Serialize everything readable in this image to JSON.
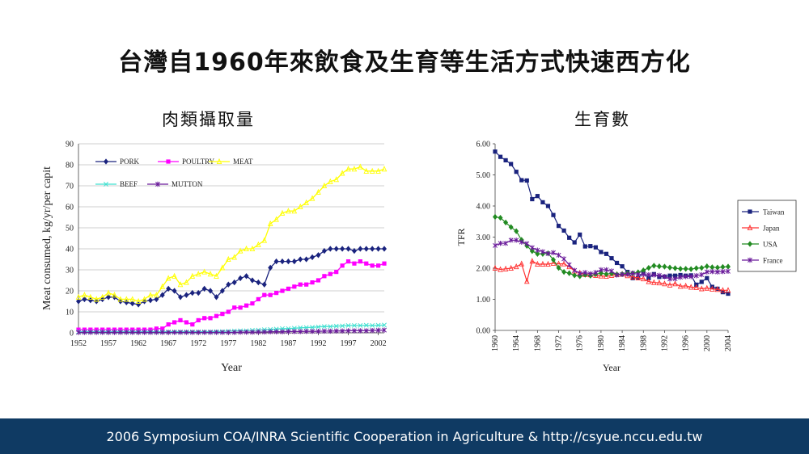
{
  "slide": {
    "title": "台灣自1960年來飲食及生育等生活方式快速西方化",
    "footer": "2006 Symposium COA/INRA Scientific Cooperation in Agriculture & http://csyue.nccu.edu.tw"
  },
  "chart_data": [
    {
      "type": "line",
      "title": "肉類攝取量",
      "xlabel": "Year",
      "ylabel": "Meat consumed, kg/yr/per capit",
      "ylim": [
        0,
        90
      ],
      "yticks": [
        "0",
        "10",
        "20",
        "30",
        "40",
        "50",
        "60",
        "70",
        "80",
        "90"
      ],
      "xticks": [
        "1952",
        "1957",
        "1962",
        "1967",
        "1972",
        "1977",
        "1982",
        "1987",
        "1992",
        "1997",
        "2002"
      ],
      "grid": "horizontal",
      "legend_placement": "top-left",
      "x": [
        1952,
        1953,
        1954,
        1955,
        1956,
        1957,
        1958,
        1959,
        1960,
        1961,
        1962,
        1963,
        1964,
        1965,
        1966,
        1967,
        1968,
        1969,
        1970,
        1971,
        1972,
        1973,
        1974,
        1975,
        1976,
        1977,
        1978,
        1979,
        1980,
        1981,
        1982,
        1983,
        1984,
        1985,
        1986,
        1987,
        1988,
        1989,
        1990,
        1991,
        1992,
        1993,
        1994,
        1995,
        1996,
        1997,
        1998,
        1999,
        2000,
        2001,
        2002,
        2003
      ],
      "series": [
        {
          "name": "PORK",
          "color": "#1a237e",
          "marker": "diamond",
          "values": [
            15,
            16,
            15.5,
            15,
            16,
            17,
            17,
            15,
            14.5,
            14,
            13.5,
            15,
            15.5,
            16,
            18,
            21,
            20,
            17,
            18,
            19,
            19,
            21,
            20,
            17,
            20,
            23,
            24,
            26,
            27,
            25,
            24,
            23,
            31,
            34,
            34,
            34,
            34,
            35,
            35,
            36,
            37,
            39,
            40,
            40,
            40,
            40,
            39,
            40,
            40,
            40,
            40,
            40
          ]
        },
        {
          "name": "POULTRY",
          "color": "#ff00ff",
          "marker": "square",
          "values": [
            1.5,
            1.5,
            1.5,
            1.5,
            1.5,
            1.5,
            1.5,
            1.5,
            1.5,
            1.5,
            1.5,
            1.5,
            1.5,
            2,
            2,
            4,
            5,
            6,
            5,
            4,
            6,
            7,
            7,
            8,
            9,
            10,
            12,
            12,
            13,
            14,
            16,
            18,
            18,
            19,
            20,
            21,
            22,
            23,
            23,
            24,
            25,
            27,
            28,
            29,
            32,
            34,
            33,
            34,
            33,
            32,
            32,
            33
          ]
        },
        {
          "name": "MEAT",
          "color": "#ffff00",
          "marker": "triangle",
          "values": [
            17,
            18,
            17,
            16,
            17,
            19,
            18,
            16,
            16,
            16,
            15,
            16,
            18,
            18,
            22,
            26,
            27,
            23,
            24,
            27,
            28,
            29,
            28,
            27,
            31,
            35,
            36,
            39,
            40,
            40,
            42,
            44,
            52,
            54,
            57,
            58,
            58,
            60,
            62,
            64,
            67,
            70,
            72,
            73,
            76,
            78,
            78,
            79,
            77,
            77,
            77,
            78
          ]
        },
        {
          "name": "BEEF",
          "color": "#40e0d0",
          "marker": "x",
          "values": [
            0.5,
            0.5,
            0.5,
            0.5,
            0.5,
            0.5,
            0.5,
            0.5,
            0.5,
            0.5,
            0.5,
            0.5,
            0.5,
            0.5,
            0.5,
            0.5,
            0.5,
            0.5,
            0.5,
            0.5,
            0.5,
            0.5,
            0.5,
            0.6,
            0.6,
            0.8,
            0.9,
            1,
            1,
            1.2,
            1.3,
            1.5,
            1.6,
            1.8,
            2,
            2,
            2.2,
            2.4,
            2.5,
            2.6,
            2.8,
            3,
            3,
            3.2,
            3.3,
            3.5,
            3.5,
            3.5,
            3.6,
            3.5,
            3.6,
            3.7
          ]
        },
        {
          "name": "MUTTON",
          "color": "#6a1b9a",
          "marker": "star",
          "values": [
            0.2,
            0.2,
            0.2,
            0.2,
            0.2,
            0.2,
            0.2,
            0.2,
            0.2,
            0.2,
            0.2,
            0.2,
            0.2,
            0.2,
            0.2,
            0.2,
            0.2,
            0.2,
            0.2,
            0.2,
            0.2,
            0.2,
            0.2,
            0.2,
            0.2,
            0.2,
            0.2,
            0.3,
            0.3,
            0.3,
            0.4,
            0.4,
            0.5,
            0.5,
            0.5,
            0.6,
            0.6,
            0.6,
            0.7,
            0.7,
            0.7,
            0.8,
            0.8,
            0.9,
            0.9,
            1,
            1,
            1,
            1,
            1.1,
            1.2,
            1.3
          ]
        }
      ]
    },
    {
      "type": "line",
      "title": "生育數",
      "xlabel": "Year",
      "ylabel": "TFR",
      "ylim": [
        0,
        6
      ],
      "yticks": [
        "0.00",
        "1.00",
        "2.00",
        "3.00",
        "4.00",
        "5.00",
        "6.00"
      ],
      "xticks": [
        "1960",
        "1964",
        "1968",
        "1972",
        "1976",
        "1980",
        "1984",
        "1988",
        "1992",
        "1996",
        "2000",
        "2004"
      ],
      "grid": "none",
      "legend_placement": "right",
      "x": [
        1960,
        1961,
        1962,
        1963,
        1964,
        1965,
        1966,
        1967,
        1968,
        1969,
        1970,
        1971,
        1972,
        1973,
        1974,
        1975,
        1976,
        1977,
        1978,
        1979,
        1980,
        1981,
        1982,
        1983,
        1984,
        1985,
        1986,
        1987,
        1988,
        1989,
        1990,
        1991,
        1992,
        1993,
        1994,
        1995,
        1996,
        1997,
        1998,
        1999,
        2000,
        2001,
        2002,
        2003,
        2004
      ],
      "series": [
        {
          "name": "Taiwan",
          "color": "#1a237e",
          "marker": "square",
          "values": [
            5.75,
            5.58,
            5.47,
            5.35,
            5.1,
            4.83,
            4.82,
            4.22,
            4.32,
            4.12,
            4.0,
            3.71,
            3.36,
            3.21,
            2.98,
            2.83,
            3.08,
            2.7,
            2.71,
            2.67,
            2.52,
            2.46,
            2.32,
            2.17,
            2.06,
            1.88,
            1.68,
            1.7,
            1.85,
            1.68,
            1.81,
            1.72,
            1.73,
            1.76,
            1.76,
            1.78,
            1.76,
            1.77,
            1.47,
            1.56,
            1.68,
            1.4,
            1.34,
            1.23,
            1.18
          ]
        },
        {
          "name": "Japan",
          "color": "#ff3030",
          "marker": "triangle",
          "values": [
            2.0,
            1.96,
            1.98,
            2.0,
            2.05,
            2.14,
            1.58,
            2.23,
            2.13,
            2.13,
            2.13,
            2.16,
            2.14,
            2.14,
            2.05,
            1.91,
            1.85,
            1.8,
            1.79,
            1.77,
            1.75,
            1.74,
            1.77,
            1.8,
            1.81,
            1.76,
            1.72,
            1.69,
            1.66,
            1.57,
            1.54,
            1.53,
            1.5,
            1.46,
            1.5,
            1.42,
            1.43,
            1.39,
            1.38,
            1.34,
            1.36,
            1.33,
            1.32,
            1.29,
            1.29
          ]
        },
        {
          "name": "USA",
          "color": "#228b22",
          "marker": "diamond",
          "values": [
            3.65,
            3.62,
            3.47,
            3.32,
            3.19,
            2.91,
            2.72,
            2.55,
            2.46,
            2.46,
            2.48,
            2.27,
            2.01,
            1.88,
            1.84,
            1.77,
            1.74,
            1.79,
            1.76,
            1.81,
            1.84,
            1.81,
            1.83,
            1.8,
            1.81,
            1.84,
            1.84,
            1.87,
            1.93,
            2.01,
            2.08,
            2.06,
            2.05,
            2.02,
            2.0,
            1.98,
            1.98,
            1.97,
            2.0,
            2.01,
            2.06,
            2.03,
            2.02,
            2.04,
            2.05
          ]
        },
        {
          "name": "France",
          "color": "#6a1b9a",
          "marker": "star",
          "values": [
            2.73,
            2.8,
            2.8,
            2.9,
            2.9,
            2.84,
            2.79,
            2.66,
            2.58,
            2.53,
            2.47,
            2.5,
            2.42,
            2.3,
            2.11,
            1.93,
            1.83,
            1.86,
            1.82,
            1.86,
            1.95,
            1.95,
            1.91,
            1.78,
            1.8,
            1.81,
            1.84,
            1.8,
            1.8,
            1.79,
            1.78,
            1.77,
            1.73,
            1.65,
            1.66,
            1.71,
            1.73,
            1.73,
            1.76,
            1.79,
            1.88,
            1.89,
            1.88,
            1.89,
            1.9
          ]
        }
      ]
    }
  ]
}
